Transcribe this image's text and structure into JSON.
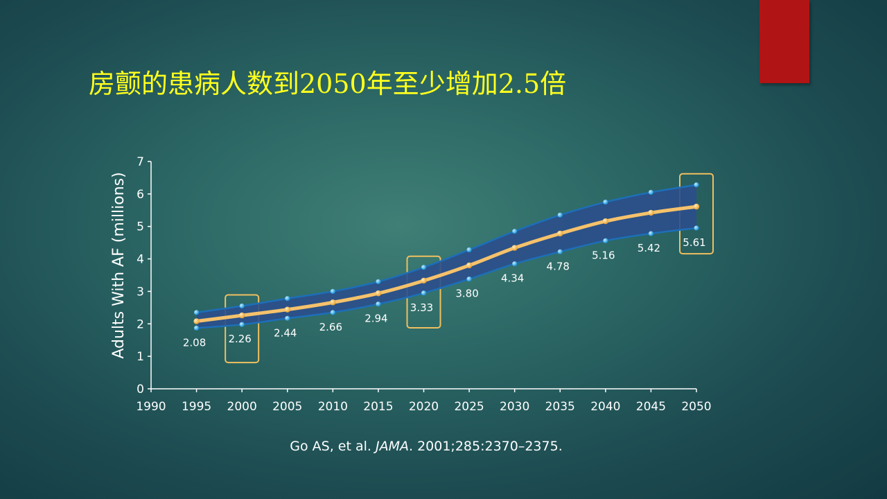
{
  "slide": {
    "title": "房颤的患病人数到2050年至少增加2.5倍",
    "citation": {
      "authors": "Go AS, et al.",
      "journal": "JAMA",
      "details": ". 2001;285:2370–2375."
    },
    "accent_color": "#b11414",
    "title_color": "#ffff1e"
  },
  "chart_data": {
    "type": "area",
    "title": "",
    "xlabel": "",
    "ylabel": "Adults With AF (millions)",
    "xlim": [
      1990,
      2050
    ],
    "ylim": [
      0,
      7
    ],
    "x_ticks": [
      "1990",
      "1995",
      "2000",
      "2005",
      "2010",
      "2015",
      "2020",
      "2025",
      "2030",
      "2035",
      "2040",
      "2045",
      "2050"
    ],
    "y_ticks": [
      "0",
      "1",
      "2",
      "3",
      "4",
      "5",
      "6",
      "7"
    ],
    "x": [
      1995,
      2000,
      2005,
      2010,
      2015,
      2020,
      2025,
      2030,
      2035,
      2040,
      2045,
      2050
    ],
    "series": [
      {
        "role": "median",
        "values": [
          2.08,
          2.26,
          2.44,
          2.66,
          2.94,
          3.33,
          3.8,
          4.34,
          4.78,
          5.16,
          5.42,
          5.61
        ],
        "color": "#f5c26b"
      },
      {
        "role": "upper",
        "values": [
          2.35,
          2.55,
          2.78,
          3.0,
          3.3,
          3.74,
          4.28,
          4.85,
          5.35,
          5.75,
          6.05,
          6.28
        ],
        "color": "#1ba8e8"
      },
      {
        "role": "lower",
        "values": [
          1.87,
          1.98,
          2.17,
          2.35,
          2.61,
          2.95,
          3.38,
          3.85,
          4.22,
          4.56,
          4.78,
          4.95
        ],
        "color": "#1ba8e8"
      }
    ],
    "data_labels": [
      "2.08",
      "2.26",
      "2.44",
      "2.66",
      "2.94",
      "3.33",
      "3.80",
      "4.34",
      "4.78",
      "5.16",
      "5.42",
      "5.61"
    ],
    "highlighted_x": [
      2000,
      2020,
      2050
    ],
    "band_color": "#2b4f8c",
    "highlight_color": "#f0c060",
    "grid": false
  }
}
